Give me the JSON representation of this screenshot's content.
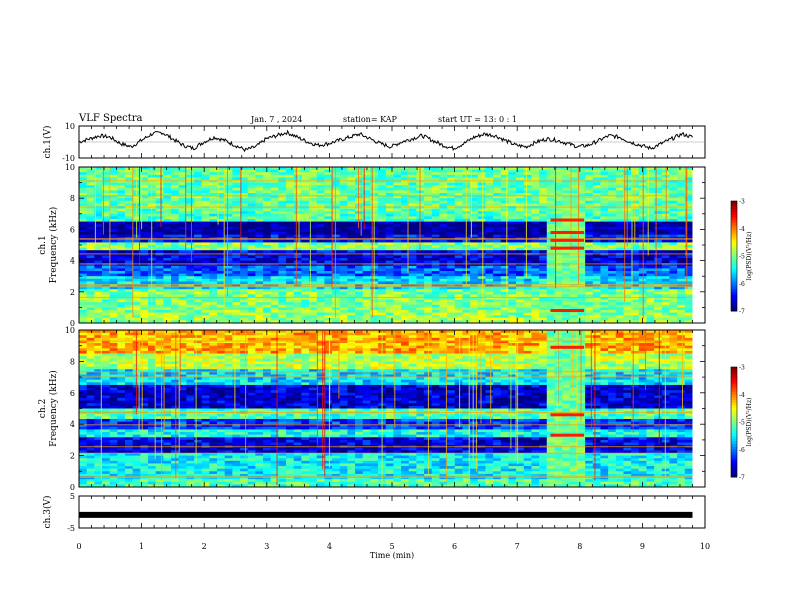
{
  "header": {
    "title": "VLF Spectra",
    "date": "Jan. 7 , 2024",
    "station": "station= KAP",
    "start": "start  UT =   13: 0  : 1"
  },
  "chart_data": [
    {
      "type": "line",
      "panel": "waveform-ch1",
      "ylabel": "ch.1(V)",
      "ylim": [
        -10,
        10
      ],
      "yticks": [
        -10,
        10
      ],
      "xlim": [
        0,
        10
      ],
      "x_end": 9.8,
      "series": [
        {
          "values": [
            0,
            2,
            4,
            3,
            -1,
            -3,
            1,
            5,
            6,
            2,
            -2,
            -4,
            0,
            3,
            1,
            -2,
            -5,
            -3,
            2,
            4,
            6,
            3,
            0,
            -2,
            -1,
            1,
            3,
            5,
            2,
            -1,
            -3,
            0,
            2,
            4,
            1,
            -2,
            -4,
            -1,
            3,
            5,
            4,
            1,
            -2,
            -3,
            0,
            2,
            1,
            -1,
            -3,
            -2,
            1,
            4,
            3,
            0,
            -2,
            -4,
            -1,
            2,
            5,
            3
          ]
        }
      ]
    },
    {
      "type": "heatmap",
      "panel": "spectrogram-ch1",
      "ylabel": "ch.1 Frequency (kHz)",
      "ylim": [
        0,
        10
      ],
      "yticks": [
        0,
        2,
        4,
        6,
        8,
        10
      ],
      "xlim": [
        0,
        10
      ],
      "x_end": 9.8,
      "burst_x": [
        7.5,
        8.1
      ],
      "burst_lines_khz": [
        0.8,
        4.8,
        5.3,
        5.8,
        6.6
      ],
      "colorbar": {
        "label": "log(PSD)(V²/Hz)",
        "ticks": [
          -3,
          -4,
          -5,
          -6,
          -7
        ],
        "range": [
          -7,
          -3
        ]
      },
      "band_levels": [
        {
          "from": 0.0,
          "to": 0.6,
          "level": -4.9
        },
        {
          "from": 0.6,
          "to": 2.2,
          "level": -5.0
        },
        {
          "from": 2.2,
          "to": 3.0,
          "level": -5.6
        },
        {
          "from": 3.0,
          "to": 3.6,
          "level": -6.1
        },
        {
          "from": 3.6,
          "to": 4.6,
          "level": -6.6
        },
        {
          "from": 4.6,
          "to": 5.2,
          "level": -5.0
        },
        {
          "from": 5.2,
          "to": 5.6,
          "level": -6.5
        },
        {
          "from": 5.6,
          "to": 6.5,
          "level": -6.9
        },
        {
          "from": 6.5,
          "to": 7.2,
          "level": -5.2
        },
        {
          "from": 7.2,
          "to": 10.0,
          "level": -5.1
        }
      ]
    },
    {
      "type": "heatmap",
      "panel": "spectrogram-ch2",
      "ylabel": "ch.2 Frequency (kHz)",
      "ylim": [
        0,
        10
      ],
      "yticks": [
        0,
        2,
        4,
        6,
        8,
        10
      ],
      "xlim": [
        0,
        10
      ],
      "x_end": 9.8,
      "burst_x": [
        7.5,
        8.1
      ],
      "burst_lines_khz": [
        3.3,
        4.6,
        8.9
      ],
      "colorbar": {
        "label": "log(PSD)(V²/Hz)",
        "ticks": [
          -3,
          -4,
          -5,
          -6,
          -7
        ],
        "range": [
          -7,
          -3
        ]
      },
      "band_levels": [
        {
          "from": 0.0,
          "to": 0.5,
          "level": -5.2
        },
        {
          "from": 0.5,
          "to": 2.2,
          "level": -5.5
        },
        {
          "from": 2.2,
          "to": 3.2,
          "level": -6.6
        },
        {
          "from": 3.2,
          "to": 3.6,
          "level": -5.4
        },
        {
          "from": 3.6,
          "to": 4.4,
          "level": -6.3
        },
        {
          "from": 4.4,
          "to": 5.0,
          "level": -5.2
        },
        {
          "from": 5.0,
          "to": 6.5,
          "level": -6.7
        },
        {
          "from": 6.5,
          "to": 7.5,
          "level": -5.6
        },
        {
          "from": 7.5,
          "to": 8.5,
          "level": -4.8
        },
        {
          "from": 8.5,
          "to": 10.0,
          "level": -4.2
        }
      ]
    },
    {
      "type": "line",
      "panel": "waveform-ch3",
      "ylabel": "ch.3(V)",
      "ylim": [
        -5,
        5
      ],
      "yticks": [
        -5,
        5
      ],
      "xlim": [
        0,
        10
      ],
      "x_end": 9.8,
      "level": -0.9,
      "xticks": [
        0,
        1,
        2,
        3,
        4,
        5,
        6,
        7,
        8,
        9,
        10
      ],
      "xlabel": "Time  (min)"
    }
  ]
}
